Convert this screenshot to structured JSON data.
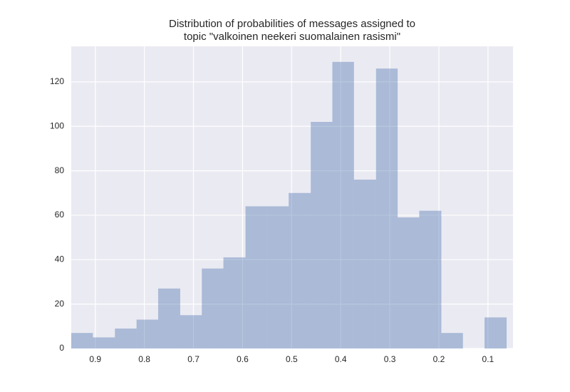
{
  "chart_data": {
    "type": "histogram",
    "title": [
      "Distribution of probabilities of messages assigned to",
      "topic \"valkoinen neekeri suomalainen rasismi\""
    ],
    "bins": [
      0.949,
      0.905,
      0.86,
      0.816,
      0.772,
      0.727,
      0.683,
      0.639,
      0.594,
      0.55,
      0.506,
      0.461,
      0.417,
      0.373,
      0.328,
      0.284,
      0.24,
      0.195,
      0.151,
      0.107,
      0.062
    ],
    "counts": [
      7,
      5,
      9,
      13,
      27,
      15,
      36,
      41,
      64,
      64,
      70,
      102,
      129,
      76,
      126,
      59,
      62,
      7,
      0,
      14
    ],
    "color": "#4c72b0",
    "opacity": 0.4,
    "xlim": [
      0.949,
      0.049
    ],
    "xticks": [
      0.9,
      0.8,
      0.7,
      0.6,
      0.5,
      0.4,
      0.3,
      0.2,
      0.1
    ],
    "ylim": [
      0,
      136
    ],
    "yticks": [
      0,
      20,
      40,
      60,
      80,
      100,
      120
    ],
    "grid": true
  }
}
